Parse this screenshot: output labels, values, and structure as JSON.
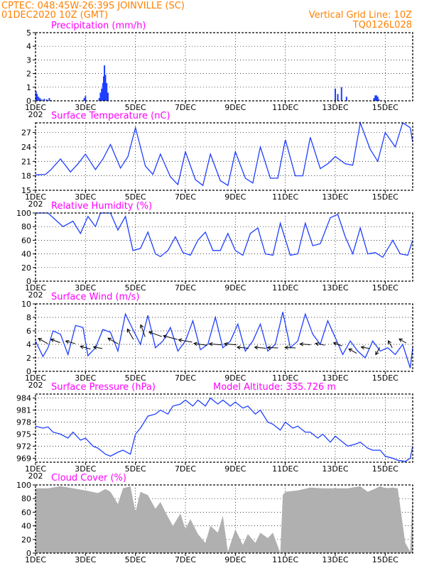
{
  "header": {
    "line1_left": "CPTEC:   048:45W-26:39S   JOINVILLE (SC)",
    "line2_left": "01DEC2020 10Z (GMT)",
    "line2_right": "Vertical Grid Line: 10Z",
    "line3_right": "TQ0126L028"
  },
  "colors": {
    "header": "#ff8000",
    "title": "#ff00ff",
    "series": "#1f3fff",
    "cloud": "#b0b0b0",
    "wind_arrow": "#000000"
  },
  "x_axis": {
    "ticks": [
      "1DEC",
      "3DEC",
      "5DEC",
      "7DEC",
      "9DEC",
      "11DEC",
      "13DEC",
      "15DEC"
    ],
    "tick_days": [
      1,
      3,
      5,
      7,
      9,
      11,
      13,
      15
    ],
    "range_days": [
      1,
      16.1
    ],
    "year_fragment": "202"
  },
  "chart_data": [
    {
      "id": "precip",
      "type": "bar",
      "title": "Precipitation (mm/h)",
      "ylim": [
        0,
        5
      ],
      "yticks": [
        0,
        1,
        2,
        3,
        4,
        5
      ],
      "x": [
        1.02,
        1.06,
        1.12,
        1.18,
        1.25,
        1.35,
        1.45,
        1.55,
        1.62,
        2.95,
        3.0,
        3.55,
        3.6,
        3.65,
        3.7,
        3.73,
        3.76,
        3.8,
        3.85,
        3.9,
        7.5,
        10.0,
        13.0,
        13.1,
        13.25,
        13.45,
        14.55,
        14.6,
        14.65,
        14.7,
        14.75
      ],
      "values": [
        0.7,
        0.5,
        0.3,
        0.2,
        0.1,
        0.15,
        0.1,
        0.2,
        0.05,
        0.2,
        0.35,
        0.2,
        0.6,
        0.9,
        1.3,
        1.8,
        2.6,
        1.9,
        1.3,
        0.6,
        0.03,
        0.03,
        0.9,
        0.5,
        1.0,
        0.3,
        0.2,
        0.4,
        0.4,
        0.3,
        0.1
      ]
    },
    {
      "id": "temp",
      "type": "line",
      "title": "Surface Temperature (nC)",
      "ylim": [
        15,
        29
      ],
      "yticks": [
        15,
        18,
        21,
        24,
        27
      ],
      "x": [
        1.0,
        1.4,
        1.6,
        2.0,
        2.4,
        2.7,
        3.0,
        3.4,
        3.7,
        4.0,
        4.4,
        4.7,
        5.0,
        5.4,
        5.7,
        6.0,
        6.4,
        6.7,
        7.0,
        7.4,
        7.7,
        8.0,
        8.4,
        8.7,
        9.0,
        9.4,
        9.7,
        10.0,
        10.4,
        10.7,
        11.0,
        11.4,
        11.7,
        12.0,
        12.4,
        12.7,
        13.0,
        13.4,
        13.7,
        14.0,
        14.4,
        14.7,
        15.0,
        15.4,
        15.7,
        16.0,
        16.1
      ],
      "series": [
        {
          "values": [
            18.2,
            18.3,
            19.2,
            21.5,
            18.8,
            20.5,
            22.5,
            19.3,
            21.5,
            24.5,
            19.6,
            22,
            28,
            20,
            18.3,
            22.5,
            17.8,
            16.2,
            23,
            17.2,
            16,
            22.5,
            17,
            16,
            23,
            17.5,
            16.5,
            24,
            17.5,
            17.5,
            25.5,
            18,
            18,
            26,
            19.5,
            20.5,
            22,
            20.5,
            20.2,
            29,
            23.5,
            21,
            27,
            24,
            29,
            28,
            25
          ]
        }
      ]
    },
    {
      "id": "rh",
      "type": "line",
      "title": "Relative Humidity (%)",
      "ylim": [
        0,
        100
      ],
      "yticks": [
        0,
        20,
        40,
        60,
        80,
        100
      ],
      "x": [
        1.0,
        1.5,
        1.8,
        2.1,
        2.5,
        2.8,
        3.1,
        3.4,
        3.6,
        4.0,
        4.3,
        4.6,
        4.9,
        5.2,
        5.5,
        5.8,
        6.0,
        6.3,
        6.6,
        6.9,
        7.2,
        7.5,
        7.8,
        8.1,
        8.4,
        8.7,
        9.0,
        9.3,
        9.6,
        9.9,
        10.2,
        10.5,
        10.8,
        11.2,
        11.5,
        11.8,
        12.1,
        12.4,
        12.8,
        13.1,
        13.4,
        13.7,
        14.0,
        14.3,
        14.6,
        14.9,
        15.3,
        15.6,
        15.9,
        16.1
      ],
      "series": [
        {
          "values": [
            100,
            100,
            90,
            80,
            88,
            70,
            95,
            80,
            100,
            100,
            75,
            95,
            45,
            48,
            72,
            40,
            36,
            45,
            65,
            42,
            38,
            60,
            72,
            45,
            45,
            70,
            45,
            38,
            70,
            78,
            40,
            38,
            85,
            38,
            40,
            85,
            52,
            55,
            93,
            98,
            65,
            40,
            78,
            40,
            42,
            35,
            60,
            40,
            38,
            60
          ]
        }
      ]
    },
    {
      "id": "wind",
      "type": "line",
      "title": "Surface Wind (m/s)",
      "ylim": [
        0,
        10
      ],
      "yticks": [
        0,
        2,
        4,
        6,
        8,
        10
      ],
      "x": [
        1.0,
        1.3,
        1.5,
        1.7,
        2.0,
        2.3,
        2.6,
        2.9,
        3.1,
        3.4,
        3.7,
        4.0,
        4.3,
        4.6,
        4.9,
        5.2,
        5.5,
        5.8,
        6.1,
        6.4,
        6.7,
        7.0,
        7.3,
        7.6,
        7.9,
        8.2,
        8.5,
        8.8,
        9.1,
        9.4,
        9.7,
        10.0,
        10.3,
        10.6,
        10.9,
        11.2,
        11.5,
        11.8,
        12.1,
        12.4,
        12.7,
        13.0,
        13.3,
        13.6,
        13.9,
        14.2,
        14.5,
        14.8,
        15.1,
        15.4,
        15.7,
        16.0,
        16.1
      ],
      "series": [
        {
          "values": [
            4.5,
            2.2,
            3.5,
            6.0,
            5.5,
            2.5,
            6.8,
            6.5,
            2.3,
            3.5,
            6.2,
            5.8,
            3.0,
            8.5,
            6.2,
            4.0,
            8.3,
            3.5,
            4.5,
            6.5,
            3.0,
            4.5,
            7.5,
            3.2,
            4.0,
            8.0,
            3.5,
            4.5,
            7.0,
            3.0,
            4.5,
            7.0,
            3.0,
            4.0,
            8.8,
            3.5,
            4.5,
            8.5,
            5.5,
            4.0,
            7.5,
            5.0,
            2.5,
            4.5,
            3.0,
            2.0,
            4.5,
            3.0,
            3.5,
            2.5,
            4.0,
            0.5,
            3.5
          ]
        }
      ],
      "arrows": {
        "x": [
          1.3,
          1.8,
          2.4,
          3.0,
          3.5,
          4.1,
          4.8,
          5.3,
          5.8,
          6.4,
          7.0,
          7.6,
          8.2,
          8.8,
          9.3,
          10.0,
          10.5,
          11.2,
          11.8,
          12.4,
          13.1,
          13.7,
          14.2,
          14.7,
          15.2,
          15.7
        ],
        "speed": [
          4.0,
          3.5,
          3.5,
          4.0,
          3.0,
          4.5,
          5.0,
          5.5,
          6.0,
          6.5,
          6.0,
          5.5,
          5.0,
          5.0,
          4.5,
          4.5,
          4.0,
          4.0,
          4.0,
          3.5,
          3.0,
          3.0,
          2.5,
          2.5,
          2.5,
          2.5
        ],
        "to_direction_deg": [
          150,
          160,
          165,
          165,
          170,
          150,
          120,
          110,
          160,
          165,
          170,
          172,
          175,
          175,
          175,
          175,
          178,
          178,
          175,
          170,
          160,
          150,
          170,
          240,
          120,
          150
        ],
        "y": [
          4.5,
          4.5,
          4.3,
          3.5,
          3.5,
          4.5,
          5.5,
          6.0,
          5.5,
          5.0,
          4.5,
          4.0,
          4.0,
          4.0,
          3.5,
          3.5,
          3.5,
          3.5,
          4.0,
          4.0,
          4.0,
          3.0,
          3.5,
          3.0,
          4.0,
          4.5
        ]
      }
    },
    {
      "id": "pres",
      "type": "line",
      "title": "Surface Pressure (hPa)",
      "annotation": "Model Altitude: 335.726 m",
      "ylim": [
        968,
        985
      ],
      "yticks": [
        969,
        972,
        975,
        978,
        981,
        984
      ],
      "x": [
        1.0,
        1.3,
        1.5,
        1.7,
        2.0,
        2.3,
        2.5,
        2.8,
        3.0,
        3.3,
        3.5,
        3.8,
        4.0,
        4.3,
        4.5,
        4.8,
        5.0,
        5.2,
        5.5,
        5.8,
        6.0,
        6.3,
        6.5,
        6.8,
        7.0,
        7.3,
        7.5,
        7.8,
        8.0,
        8.3,
        8.5,
        8.8,
        9.0,
        9.3,
        9.5,
        9.8,
        10.0,
        10.3,
        10.5,
        10.8,
        11.0,
        11.3,
        11.5,
        11.8,
        12.0,
        12.3,
        12.5,
        12.8,
        13.0,
        13.3,
        13.5,
        13.8,
        14.0,
        14.3,
        14.5,
        14.8,
        15.0,
        15.3,
        15.5,
        15.8,
        16.0,
        16.1
      ],
      "series": [
        {
          "values": [
            977,
            976.5,
            976.8,
            975.5,
            975,
            974,
            975.5,
            973.5,
            974,
            972,
            971.5,
            970,
            969.5,
            970.5,
            971,
            970,
            975,
            976.5,
            979.5,
            980,
            981,
            980,
            982,
            982.5,
            983.5,
            982,
            983.5,
            982,
            984,
            982.5,
            983.5,
            982,
            983,
            981.5,
            982,
            980,
            981,
            978,
            977.5,
            976,
            978,
            976.5,
            977,
            975.5,
            975.5,
            974,
            975,
            973,
            974.5,
            973,
            972,
            972.5,
            973,
            971.5,
            971,
            971,
            969.5,
            969,
            968.5,
            968.2,
            969,
            972
          ]
        }
      ]
    },
    {
      "id": "cloud",
      "type": "area",
      "title": "Cloud Cover (%)",
      "ylim": [
        0,
        100
      ],
      "yticks": [
        0,
        20,
        40,
        60,
        80,
        100
      ],
      "x": [
        1.0,
        1.5,
        2.0,
        2.5,
        3.0,
        3.5,
        3.8,
        4.0,
        4.3,
        4.5,
        4.8,
        5.0,
        5.2,
        5.5,
        5.8,
        6.0,
        6.2,
        6.5,
        6.8,
        7.0,
        7.2,
        7.5,
        7.8,
        8.0,
        8.3,
        8.5,
        8.7,
        9.0,
        9.3,
        9.5,
        9.8,
        10.0,
        10.3,
        10.5,
        10.8,
        10.9,
        11.0,
        11.5,
        12.0,
        12.5,
        13.0,
        13.5,
        14.0,
        14.3,
        14.5,
        14.8,
        15.0,
        15.3,
        15.5,
        15.8,
        16.0,
        16.1
      ],
      "series": [
        {
          "values": [
            95,
            95,
            98,
            95,
            92,
            88,
            94,
            90,
            72,
            95,
            98,
            60,
            90,
            85,
            65,
            75,
            60,
            40,
            58,
            35,
            50,
            28,
            15,
            40,
            30,
            55,
            2,
            35,
            12,
            28,
            15,
            30,
            22,
            30,
            0,
            85,
            90,
            92,
            96,
            95,
            95,
            95,
            98,
            90,
            93,
            98,
            95,
            96,
            95,
            15,
            2,
            90
          ]
        }
      ]
    }
  ]
}
